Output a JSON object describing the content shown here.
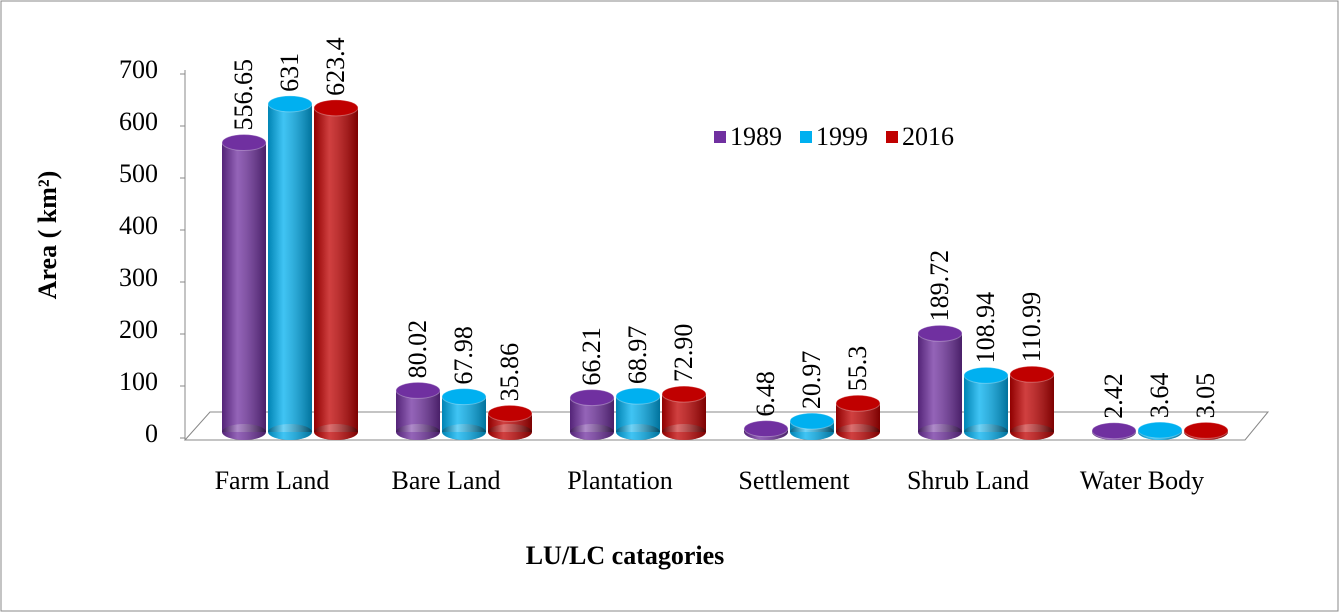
{
  "chart_data": {
    "type": "bar3d",
    "y_label": "Area ( km²)",
    "x_label": "LU/LC  catagories",
    "categories": [
      "Farm Land",
      "Bare Land",
      "Plantation",
      "Settlement",
      "Shrub Land",
      "Water Body"
    ],
    "series": [
      {
        "name": "1989",
        "color": "#7030a0",
        "values": [
          556.65,
          80.02,
          66.21,
          6.48,
          189.72,
          2.42
        ],
        "value_labels": [
          "556.65",
          "80.02",
          "66.21",
          "6.48",
          "189.72",
          "2.42"
        ]
      },
      {
        "name": "1999",
        "color": "#00b0f0",
        "values": [
          631,
          67.98,
          68.97,
          20.97,
          108.94,
          3.64
        ],
        "value_labels": [
          "631",
          "67.98",
          "68.97",
          "20.97",
          "108.94",
          "3.64"
        ]
      },
      {
        "name": "2016",
        "color": "#c00000",
        "values": [
          623.4,
          35.86,
          72.9,
          55.3,
          110.99,
          3.05
        ],
        "value_labels": [
          "623.4",
          "35.86",
          "72.90",
          "55.3",
          "110.99",
          "3.05"
        ]
      }
    ],
    "ylim": [
      0,
      700
    ],
    "yticks": [
      0,
      100,
      200,
      300,
      400,
      500,
      600,
      700
    ],
    "legend": "top-center"
  }
}
